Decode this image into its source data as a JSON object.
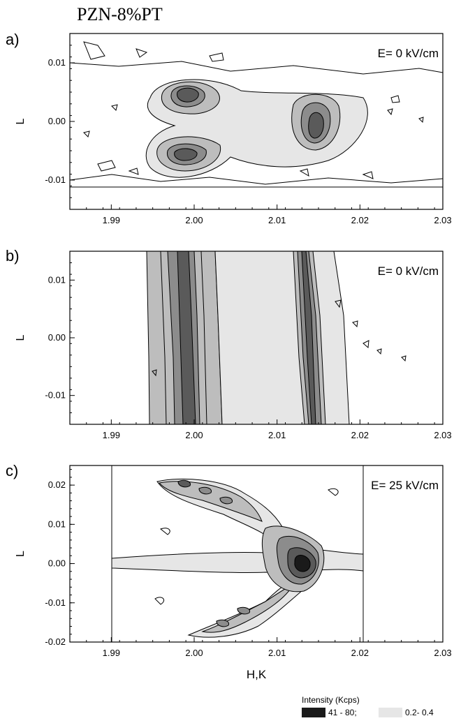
{
  "figure": {
    "title": "PZN-8%PT"
  },
  "colors": {
    "c1": "#e6e6e6",
    "c2": "#bdbdbd",
    "c3": "#8c8c8c",
    "c4": "#5a5a5a",
    "c5": "#1a1a1a"
  },
  "chart_data": [
    {
      "type": "heatmap",
      "panel_label": "a)",
      "annotation": "E= 0 kV/cm",
      "xlabel": "",
      "ylabel": "L",
      "xlim": [
        1.985,
        2.03
      ],
      "ylim": [
        -0.015,
        0.015
      ],
      "xticks": [
        "1.99",
        "2.00",
        "2.01",
        "2.02",
        "2.03"
      ],
      "yticks": [
        "-0.01",
        "0.00",
        "0.01"
      ],
      "peaks": [
        {
          "h": 2.0,
          "l": 0.005
        },
        {
          "h": 2.015,
          "l": -0.002
        },
        {
          "h": 2.0,
          "l": -0.005
        }
      ]
    },
    {
      "type": "heatmap",
      "panel_label": "b)",
      "annotation": "E= 0 kV/cm",
      "xlabel": "",
      "ylabel": "L",
      "xlim": [
        1.985,
        2.03
      ],
      "ylim": [
        -0.015,
        0.015
      ],
      "xticks": [
        "1.99",
        "2.00",
        "2.01",
        "2.02",
        "2.03"
      ],
      "yticks": [
        "-0.01",
        "0.00",
        "0.01"
      ],
      "ridges": [
        {
          "h": 2.0
        },
        {
          "h": 2.015
        }
      ]
    },
    {
      "type": "heatmap",
      "panel_label": "c)",
      "annotation": "E= 25 kV/cm",
      "xlabel": "H,K",
      "ylabel": "L",
      "xlim": [
        1.985,
        2.03
      ],
      "ylim": [
        -0.02,
        0.025
      ],
      "xticks": [
        "1.99",
        "2.00",
        "2.01",
        "2.02",
        "2.03"
      ],
      "yticks": [
        "-0.02",
        "-0.01",
        "0.00",
        "0.01",
        "0.02"
      ],
      "peaks": [
        {
          "h": 2.013,
          "l": 0.002
        }
      ]
    }
  ],
  "legend": {
    "title": "Intensity (Kcps)",
    "entries": [
      {
        "label": "41 - 80;",
        "color": "#1a1a1a"
      },
      {
        "label": "0.2- 0.4",
        "color": "#e6e6e6"
      }
    ]
  }
}
